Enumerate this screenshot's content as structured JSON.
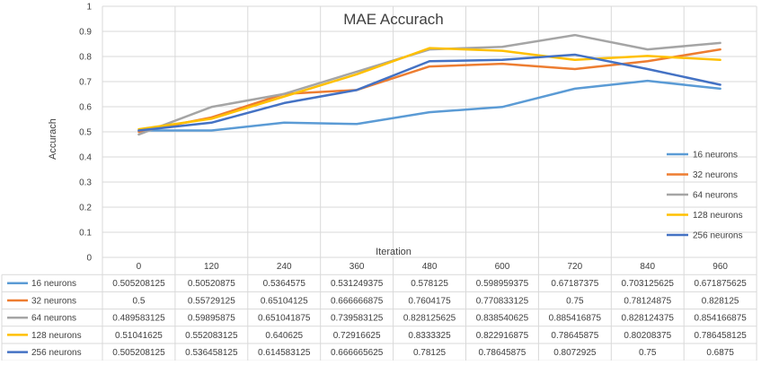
{
  "chart_data": {
    "type": "line",
    "title": "MAE Accurach",
    "xlabel": "Iteration",
    "ylabel": "Accurach",
    "ylim": [
      0,
      1
    ],
    "yticks": [
      "0",
      "0.1",
      "0.2",
      "0.3",
      "0.4",
      "0.5",
      "0.6",
      "0.7",
      "0.8",
      "0.9",
      "1"
    ],
    "categories": [
      "0",
      "120",
      "240",
      "360",
      "480",
      "600",
      "720",
      "840",
      "960"
    ],
    "grid": true,
    "legend_position": "right",
    "series": [
      {
        "name": "16 neurons",
        "color": "#5B9BD5",
        "values": [
          0.505208125,
          0.50520875,
          0.5364575,
          0.531249375,
          0.578125,
          0.598959375,
          0.67187375,
          0.703125625,
          0.671875625
        ],
        "labels": [
          "0.505208125",
          "0.50520875",
          "0.5364575",
          "0.531249375",
          "0.578125",
          "0.598959375",
          "0.67187375",
          "0.703125625",
          "0.671875625"
        ]
      },
      {
        "name": "32 neurons",
        "color": "#ED7D31",
        "values": [
          0.5,
          0.55729125,
          0.65104125,
          0.666666875,
          0.7604175,
          0.770833125,
          0.75,
          0.78124875,
          0.828125
        ],
        "labels": [
          "0.5",
          "0.55729125",
          "0.65104125",
          "0.666666875",
          "0.7604175",
          "0.770833125",
          "0.75",
          "0.78124875",
          "0.828125"
        ]
      },
      {
        "name": "64 neurons",
        "color": "#A5A5A5",
        "values": [
          0.489583125,
          0.59895875,
          0.651041875,
          0.739583125,
          0.828125625,
          0.838540625,
          0.885416875,
          0.828124375,
          0.854166875
        ],
        "labels": [
          "0.489583125",
          "0.59895875",
          "0.651041875",
          "0.739583125",
          "0.828125625",
          "0.838540625",
          "0.885416875",
          "0.828124375",
          "0.854166875"
        ]
      },
      {
        "name": "128 neurons",
        "color": "#FFC000",
        "values": [
          0.51041625,
          0.552083125,
          0.640625,
          0.72916625,
          0.8333325,
          0.822916875,
          0.78645875,
          0.80208375,
          0.786458125
        ],
        "labels": [
          "0.51041625",
          "0.552083125",
          "0.640625",
          "0.72916625",
          "0.8333325",
          "0.822916875",
          "0.78645875",
          "0.80208375",
          "0.786458125"
        ]
      },
      {
        "name": "256 neurons",
        "color": "#4472C4",
        "values": [
          0.505208125,
          0.536458125,
          0.614583125,
          0.666665625,
          0.78125,
          0.78645875,
          0.8072925,
          0.75,
          0.6875
        ],
        "labels": [
          "0.505208125",
          "0.536458125",
          "0.614583125",
          "0.666665625",
          "0.78125",
          "0.78645875",
          "0.8072925",
          "0.75",
          "0.6875"
        ]
      }
    ]
  }
}
